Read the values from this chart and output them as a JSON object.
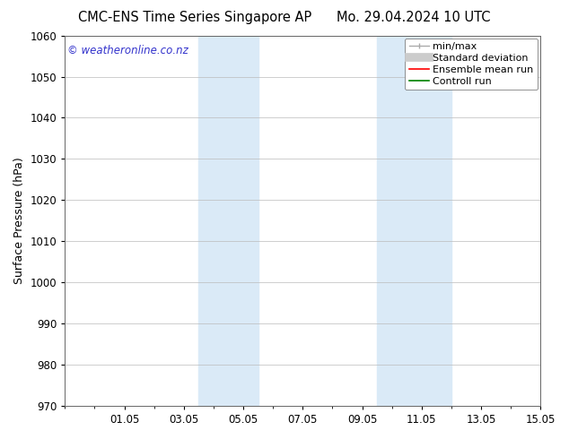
{
  "title_left": "CMC-ENS Time Series Singapore AP",
  "title_right": "Mo. 29.04.2024 10 UTC",
  "ylabel": "Surface Pressure (hPa)",
  "ylim": [
    970,
    1060
  ],
  "yticks": [
    970,
    980,
    990,
    1000,
    1010,
    1020,
    1030,
    1040,
    1050,
    1060
  ],
  "xlim": [
    0,
    16
  ],
  "xtick_labels": [
    "01.05",
    "03.05",
    "05.05",
    "07.05",
    "09.05",
    "11.05",
    "13.05",
    "15.05"
  ],
  "xtick_positions": [
    2,
    4,
    6,
    8,
    10,
    12,
    14,
    16
  ],
  "shaded_bands": [
    {
      "x_start": 4.5,
      "x_end": 6.5
    },
    {
      "x_start": 10.5,
      "x_end": 13.0
    }
  ],
  "shaded_color": "#daeaf7",
  "watermark_text": "© weatheronline.co.nz",
  "watermark_color": "#3333cc",
  "bg_color": "#ffffff",
  "spine_color": "#666666",
  "grid_color": "#bbbbbb",
  "title_fontsize": 10.5,
  "ylabel_fontsize": 9,
  "tick_fontsize": 8.5,
  "legend_fontsize": 8,
  "watermark_fontsize": 8.5
}
